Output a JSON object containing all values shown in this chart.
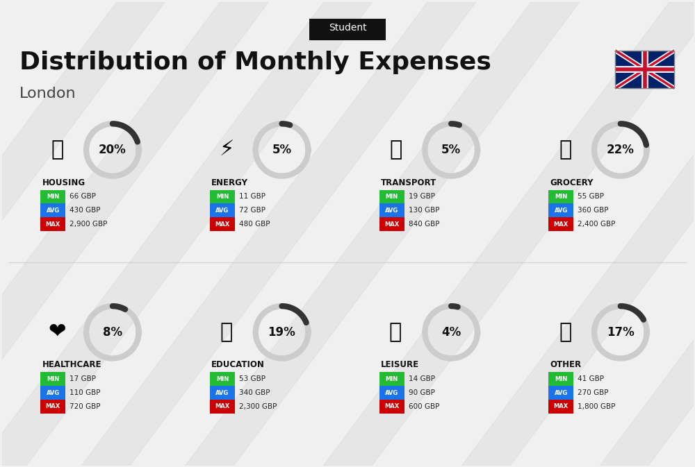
{
  "title": "Distribution of Monthly Expenses",
  "subtitle": "Student",
  "location": "London",
  "bg_color": "#f0f0f0",
  "categories": [
    {
      "name": "HOUSING",
      "pct": 20,
      "min": "66 GBP",
      "avg": "430 GBP",
      "max": "2,900 GBP",
      "row": 0,
      "col": 0
    },
    {
      "name": "ENERGY",
      "pct": 5,
      "min": "11 GBP",
      "avg": "72 GBP",
      "max": "480 GBP",
      "row": 0,
      "col": 1
    },
    {
      "name": "TRANSPORT",
      "pct": 5,
      "min": "19 GBP",
      "avg": "130 GBP",
      "max": "840 GBP",
      "row": 0,
      "col": 2
    },
    {
      "name": "GROCERY",
      "pct": 22,
      "min": "55 GBP",
      "avg": "360 GBP",
      "max": "2,400 GBP",
      "row": 0,
      "col": 3
    },
    {
      "name": "HEALTHCARE",
      "pct": 8,
      "min": "17 GBP",
      "avg": "110 GBP",
      "max": "720 GBP",
      "row": 1,
      "col": 0
    },
    {
      "name": "EDUCATION",
      "pct": 19,
      "min": "53 GBP",
      "avg": "340 GBP",
      "max": "2,300 GBP",
      "row": 1,
      "col": 1
    },
    {
      "name": "LEISURE",
      "pct": 4,
      "min": "14 GBP",
      "avg": "90 GBP",
      "max": "600 GBP",
      "row": 1,
      "col": 2
    },
    {
      "name": "OTHER",
      "pct": 17,
      "min": "41 GBP",
      "avg": "270 GBP",
      "max": "1,800 GBP",
      "row": 1,
      "col": 3
    }
  ],
  "min_color": "#22bb33",
  "avg_color": "#1a73e8",
  "max_color": "#cc0000",
  "label_color": "#ffffff",
  "arc_color": "#333333",
  "arc_bg_color": "#cccccc",
  "category_name_color": "#111111",
  "text_color": "#333333"
}
